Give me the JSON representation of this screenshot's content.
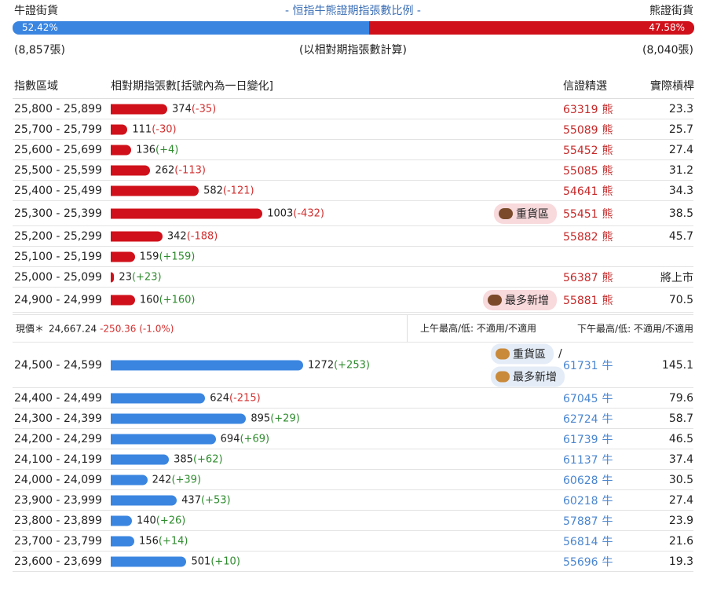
{
  "header": {
    "left": "牛證街貨",
    "title": "- 恒指牛熊證期指張數比例 -",
    "right": "熊證街貨",
    "bull_pct": {
      "value": 52.42,
      "label": "52.42%"
    },
    "bear_pct": {
      "value": 47.58,
      "label": "47.58%"
    },
    "bull_count": "(8,857張)",
    "note": "(以相對期指張數計算)",
    "bear_count": "(8,040張)"
  },
  "columns": [
    "指數區域",
    "相對期指張數[括號內為一日變化]",
    "信證精選",
    "實際槓桿"
  ],
  "bear_rows": [
    {
      "range": "25,800 - 25,899",
      "count": 374,
      "change": "(-35)",
      "pick": "63319",
      "unit": "熊",
      "leverage": 23.3
    },
    {
      "range": "25,700 - 25,799",
      "count": 111,
      "change": "(-30)",
      "pick": "55089",
      "unit": "熊",
      "leverage": 25.7
    },
    {
      "range": "25,600 - 25,699",
      "count": 136,
      "change": "(+4)",
      "pick": "55452",
      "unit": "熊",
      "leverage": 27.4
    },
    {
      "range": "25,500 - 25,599",
      "count": 262,
      "change": "(-113)",
      "pick": "55085",
      "unit": "熊",
      "leverage": 31.2
    },
    {
      "range": "25,400 - 25,499",
      "count": 582,
      "change": "(-121)",
      "pick": "54641",
      "unit": "熊",
      "leverage": 34.3
    },
    {
      "range": "25,300 - 25,399",
      "count": 1003,
      "change": "(-432)",
      "tags": [
        "重貨區"
      ],
      "pick": "55451",
      "unit": "熊",
      "leverage": 38.5
    },
    {
      "range": "25,200 - 25,299",
      "count": 342,
      "change": "(-188)",
      "pick": "55882",
      "unit": "熊",
      "leverage": 45.7
    },
    {
      "range": "25,100 - 25,199",
      "count": 159,
      "change": "(+159)"
    },
    {
      "range": "25,000 - 25,099",
      "count": 23,
      "change": "(+23)",
      "pick": "56387",
      "unit": "熊",
      "leverage": "將上市"
    },
    {
      "range": "24,900 - 24,999",
      "count": 160,
      "change": "(+160)",
      "tags": [
        "最多新增"
      ],
      "pick": "55881",
      "unit": "熊",
      "leverage": 70.5
    }
  ],
  "status": {
    "label": "現價＊",
    "price": "24,667.24",
    "change": "-250.36 (-1.0%)",
    "am": "上午最高/低: 不適用/不適用",
    "pm": "下午最高/低: 不適用/不適用"
  },
  "bull_rows": [
    {
      "range": "24,500 - 24,599",
      "count": 1272,
      "change": "(+253)",
      "tags": [
        "重貨區",
        "最多新增"
      ],
      "tag_sep": "/",
      "pick": "61731",
      "unit": "牛",
      "leverage": 145.1
    },
    {
      "range": "24,400 - 24,499",
      "count": 624,
      "change": "(-215)",
      "pick": "67045",
      "unit": "牛",
      "leverage": 79.6
    },
    {
      "range": "24,300 - 24,399",
      "count": 895,
      "change": "(+29)",
      "pick": "62724",
      "unit": "牛",
      "leverage": 58.7
    },
    {
      "range": "24,200 - 24,299",
      "count": 694,
      "change": "(+69)",
      "pick": "61739",
      "unit": "牛",
      "leverage": 46.5
    },
    {
      "range": "24,100 - 24,199",
      "count": 385,
      "change": "(+62)",
      "pick": "61137",
      "unit": "牛",
      "leverage": 37.4
    },
    {
      "range": "24,000 - 24,099",
      "count": 242,
      "change": "(+39)",
      "pick": "60628",
      "unit": "牛",
      "leverage": 30.5
    },
    {
      "range": "23,900 - 23,999",
      "count": 437,
      "change": "(+53)",
      "pick": "60218",
      "unit": "牛",
      "leverage": 27.4
    },
    {
      "range": "23,800 - 23,899",
      "count": 140,
      "change": "(+26)",
      "pick": "57887",
      "unit": "牛",
      "leverage": 23.9
    },
    {
      "range": "23,700 - 23,799",
      "count": 156,
      "change": "(+14)",
      "pick": "56814",
      "unit": "牛",
      "leverage": 21.6
    },
    {
      "range": "23,600 - 23,699",
      "count": 501,
      "change": "(+10)",
      "pick": "55696",
      "unit": "牛",
      "leverage": 19.3
    }
  ]
}
